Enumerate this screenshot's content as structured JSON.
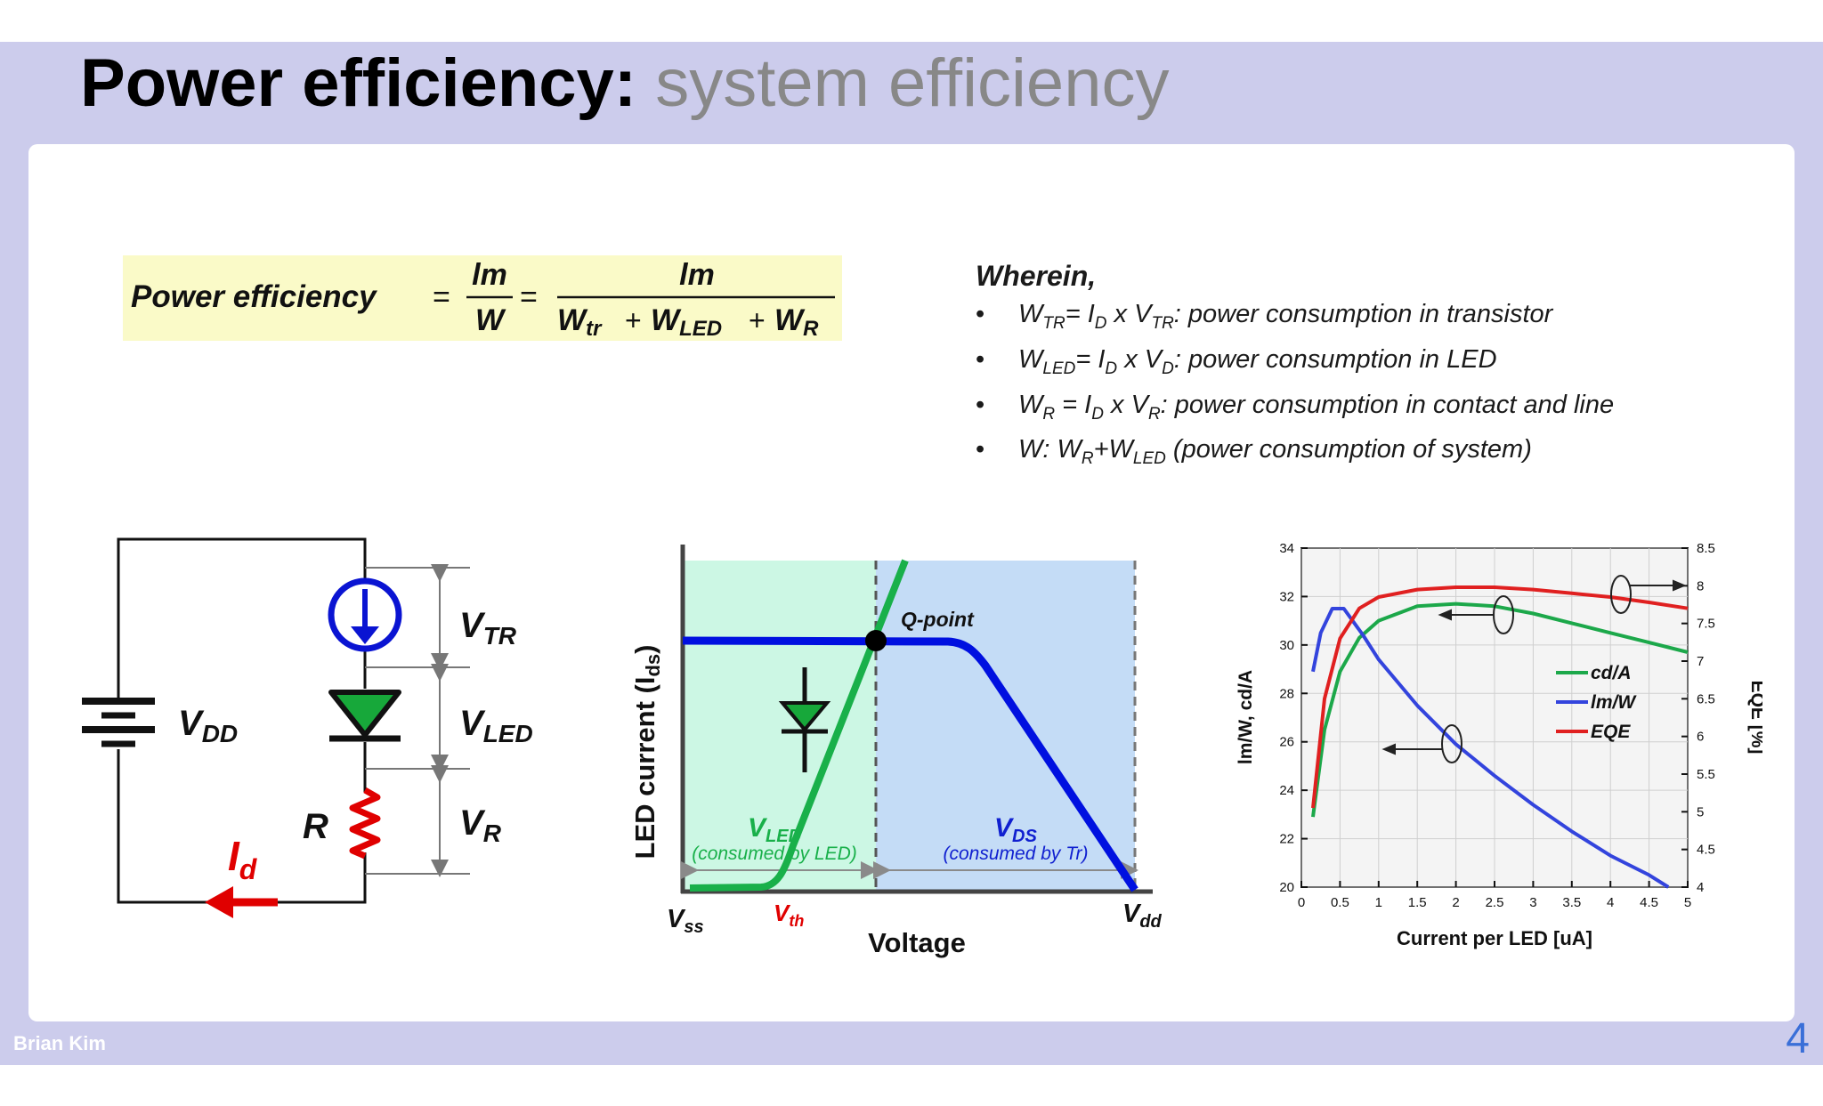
{
  "slide": {
    "title_bold": "Power efficiency:",
    "title_light": "system efficiency",
    "author": "Brian Kim",
    "page_number": "4"
  },
  "formula": {
    "lhs": "Power efficiency",
    "num1": "lm",
    "den1": "W",
    "num2": "lm",
    "den2_a": "W",
    "den2_a_sub": "tr",
    "den2_b": "W",
    "den2_b_sub": "LED",
    "den2_c": "W",
    "den2_c_sub": "R",
    "eq": "=",
    "plus": "+"
  },
  "wherein": {
    "title": "Wherein,",
    "items": [
      {
        "w": "W",
        "w_sub": "TR",
        "eq": "= ",
        "i": "I",
        "i_sub": "D",
        "x": " x V",
        "v_sub": "TR",
        "desc": ": power consumption in transistor"
      },
      {
        "w": "W",
        "w_sub": "LED",
        "eq": "= ",
        "i": "I",
        "i_sub": "D",
        "x": " x V",
        "v_sub": "D",
        "desc": ": power consumption in LED"
      },
      {
        "w": "W",
        "w_sub": "R",
        "eq": " = ",
        "i": "I",
        "i_sub": "D",
        "x": " x V",
        "v_sub": "R",
        "desc": ":  power consumption in contact and line"
      },
      {
        "w": "W: W",
        "w_sub": "R",
        "eq": "+W",
        "i_sub": "LED",
        "desc": " (power consumption of system)"
      }
    ]
  },
  "circuit": {
    "vdd": "V",
    "vdd_sub": "DD",
    "vtr": "V",
    "vtr_sub": "TR",
    "vled": "V",
    "vled_sub": "LED",
    "vr": "V",
    "vr_sub": "R",
    "r": "R",
    "id": "I",
    "id_sub": "d",
    "colors": {
      "source": "#0a14d2",
      "led": "#17a83a",
      "resistor": "#e00000",
      "current": "#e00000"
    }
  },
  "iv_diagram": {
    "ylabel": "LED current (I",
    "ylabel_sub": "ds",
    "ylabel_end": ")",
    "xlabel": "Voltage",
    "qpoint": "Q-point",
    "vled": "V",
    "vled_sub": "LED",
    "vled_note": "(consumed by LED)",
    "vds": "V",
    "vds_sub": "DS",
    "vds_note": "(consumed by Tr)",
    "vss": "V",
    "vss_sub": "ss",
    "vth": "V",
    "vth_sub": "th",
    "vdd": "V",
    "vdd_sub": "dd",
    "colors": {
      "led_region": "#ccf7e4",
      "tr_region": "#c4dcf6",
      "led_curve": "#19b04a",
      "tr_curve": "#0010e0",
      "vth": "#e00000"
    }
  },
  "chart_data": {
    "type": "line",
    "xlabel": "Current per LED [uA]",
    "ylabel": "lm/W, cd/A",
    "y2label": "EQE [%]",
    "xlim": [
      0,
      5
    ],
    "ylim": [
      20,
      34
    ],
    "y2lim": [
      4,
      8.5
    ],
    "xticks": [
      "0",
      "0.5",
      "1",
      "1.5",
      "2",
      "2.5",
      "3",
      "3.5",
      "4",
      "4.5",
      "5"
    ],
    "yticks": [
      "20",
      "22",
      "24",
      "26",
      "28",
      "30",
      "32",
      "34"
    ],
    "y2ticks": [
      "4",
      "4.5",
      "5",
      "5.5",
      "6",
      "6.5",
      "7",
      "7.5",
      "8",
      "8.5"
    ],
    "grid": true,
    "legend_position": "right",
    "series": [
      {
        "name": "cd/A",
        "axis": "left",
        "color": "#1ca84a",
        "x": [
          0.15,
          0.3,
          0.5,
          0.75,
          1.0,
          1.5,
          2.0,
          2.5,
          3.0,
          3.5,
          4.0,
          4.5,
          5.0
        ],
        "y": [
          22.9,
          26.5,
          28.9,
          30.3,
          31.0,
          31.6,
          31.7,
          31.6,
          31.3,
          30.9,
          30.5,
          30.1,
          29.7
        ]
      },
      {
        "name": "lm/W",
        "axis": "left",
        "color": "#3344dd",
        "x": [
          0.15,
          0.25,
          0.4,
          0.55,
          0.8,
          1.0,
          1.5,
          2.0,
          2.5,
          3.0,
          3.5,
          4.0,
          4.5,
          4.75
        ],
        "y": [
          28.9,
          30.5,
          31.5,
          31.5,
          30.4,
          29.4,
          27.5,
          25.9,
          24.6,
          23.4,
          22.3,
          21.3,
          20.5,
          20.0
        ]
      },
      {
        "name": "EQE",
        "axis": "right",
        "color": "#e02020",
        "x": [
          0.15,
          0.3,
          0.5,
          0.75,
          1.0,
          1.5,
          2.0,
          2.5,
          3.0,
          3.5,
          4.0,
          4.5,
          5.0
        ],
        "y": [
          5.05,
          6.5,
          7.3,
          7.7,
          7.85,
          7.95,
          7.98,
          7.98,
          7.95,
          7.9,
          7.85,
          7.78,
          7.7
        ]
      }
    ]
  }
}
